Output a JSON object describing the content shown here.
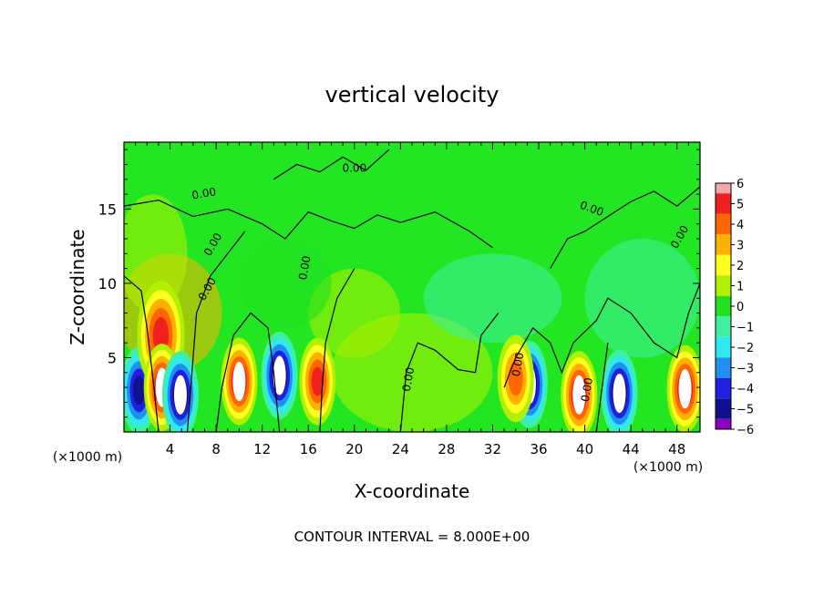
{
  "chart_data": {
    "type": "heatmap",
    "title": "vertical velocity",
    "xlabel": "X-coordinate",
    "ylabel": "Z-coordinate",
    "x_unit": "(×1000 m)",
    "y_unit": "(×1000 m)",
    "xlim": [
      0,
      50
    ],
    "ylim": [
      0,
      19.5
    ],
    "x_ticks": [
      "4",
      "8",
      "12",
      "16",
      "20",
      "24",
      "28",
      "32",
      "36",
      "40",
      "44",
      "48"
    ],
    "y_ticks": [
      "5",
      "10",
      "15"
    ],
    "contour_label": "0.00",
    "contour_interval_text": "CONTOUR INTERVAL = 8.000E+00",
    "colorbar": {
      "labels": [
        "6",
        "5",
        "4",
        "3",
        "2",
        "1",
        "0",
        "−1",
        "−2",
        "−3",
        "−4",
        "−5",
        "−6"
      ],
      "colors": [
        "#f4a8a8",
        "#ee2020",
        "#ff6600",
        "#ffb000",
        "#ffff20",
        "#b0f000",
        "#20e020",
        "#40f0a0",
        "#30e8f0",
        "#2090f0",
        "#2020e0",
        "#101090",
        "#9000c0"
      ]
    },
    "features": [
      {
        "x": 1.3,
        "z": 2.8,
        "w": -5
      },
      {
        "x": 3.2,
        "z": 6.5,
        "w": 5
      },
      {
        "x": 3.3,
        "z": 3.0,
        "w": 6
      },
      {
        "x": 4.9,
        "z": 2.5,
        "w": -6
      },
      {
        "x": 10.0,
        "z": 3.4,
        "w": 6
      },
      {
        "x": 13.5,
        "z": 3.8,
        "w": -6
      },
      {
        "x": 16.8,
        "z": 3.4,
        "w": 5
      },
      {
        "x": 35.2,
        "z": 3.2,
        "w": -6
      },
      {
        "x": 34.0,
        "z": 3.6,
        "w": 4
      },
      {
        "x": 39.5,
        "z": 2.5,
        "w": 6
      },
      {
        "x": 43.0,
        "z": 2.6,
        "w": -6
      },
      {
        "x": 48.7,
        "z": 2.9,
        "w": 6
      }
    ]
  }
}
